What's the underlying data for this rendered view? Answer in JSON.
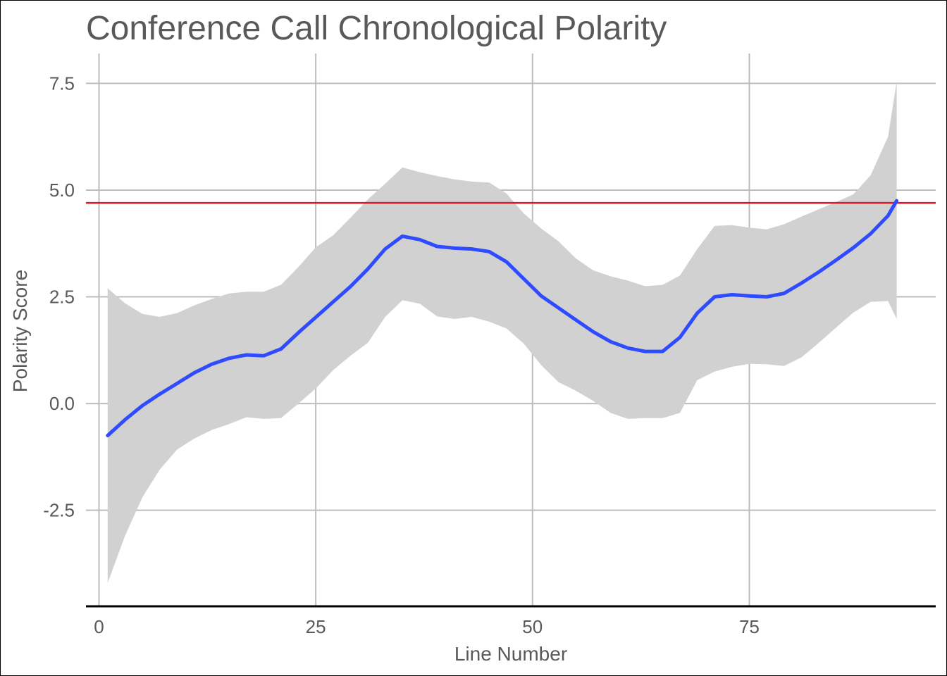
{
  "chart_data": {
    "type": "line",
    "title": "Conference Call Chronological Polarity",
    "xlabel": "Line Number",
    "ylabel": "Polarity Score",
    "xlim": [
      -1.5,
      96.5
    ],
    "ylim": [
      -4.75,
      8.2
    ],
    "x_ticks": [
      0,
      25,
      50,
      75
    ],
    "y_ticks": [
      -2.5,
      0.0,
      2.5,
      5.0,
      7.5
    ],
    "x_tick_labels": [
      "0",
      "25",
      "50",
      "75"
    ],
    "y_tick_labels": [
      "-2.5",
      "0.0",
      "2.5",
      "5.0",
      "7.5"
    ],
    "grid": true,
    "reference_line": {
      "y": 4.7,
      "color": "#e8141e"
    },
    "series": [
      {
        "color": "#2e4bff",
        "band_color": "#d1d1d1",
        "x": [
          1,
          3,
          5,
          7,
          9,
          11,
          13,
          15,
          17,
          19,
          21,
          23,
          25,
          27,
          29,
          31,
          33,
          35,
          37,
          39,
          41,
          43,
          45,
          47,
          49,
          51,
          53,
          55,
          57,
          59,
          61,
          63,
          65,
          67,
          69,
          71,
          73,
          75,
          77,
          79,
          81,
          83,
          85,
          87,
          89,
          91,
          92
        ],
        "y": [
          -0.75,
          -0.38,
          -0.05,
          0.22,
          0.47,
          0.72,
          0.92,
          1.06,
          1.14,
          1.12,
          1.28,
          1.66,
          2.02,
          2.38,
          2.74,
          3.15,
          3.62,
          3.92,
          3.84,
          3.68,
          3.64,
          3.62,
          3.56,
          3.32,
          2.92,
          2.52,
          2.24,
          1.96,
          1.68,
          1.45,
          1.3,
          1.22,
          1.22,
          1.55,
          2.12,
          2.5,
          2.55,
          2.52,
          2.5,
          2.58,
          2.82,
          3.08,
          3.36,
          3.65,
          3.98,
          4.4,
          4.75
        ],
        "upper": [
          2.7,
          2.35,
          2.1,
          2.03,
          2.12,
          2.3,
          2.45,
          2.58,
          2.62,
          2.62,
          2.78,
          3.2,
          3.66,
          3.94,
          4.35,
          4.78,
          5.15,
          5.53,
          5.42,
          5.33,
          5.25,
          5.2,
          5.18,
          4.92,
          4.45,
          4.1,
          3.8,
          3.4,
          3.12,
          2.98,
          2.88,
          2.75,
          2.78,
          3.0,
          3.62,
          4.16,
          4.18,
          4.12,
          4.08,
          4.2,
          4.38,
          4.55,
          4.72,
          4.9,
          5.35,
          6.25,
          7.55
        ],
        "lower": [
          -4.2,
          -3.1,
          -2.2,
          -1.55,
          -1.08,
          -0.82,
          -0.62,
          -0.48,
          -0.32,
          -0.36,
          -0.34,
          0.0,
          0.35,
          0.78,
          1.12,
          1.42,
          2.03,
          2.42,
          2.34,
          2.04,
          1.98,
          2.03,
          1.92,
          1.76,
          1.4,
          0.9,
          0.5,
          0.3,
          0.06,
          -0.22,
          -0.36,
          -0.34,
          -0.34,
          -0.22,
          0.55,
          0.75,
          0.86,
          0.93,
          0.92,
          0.88,
          1.08,
          1.42,
          1.78,
          2.13,
          2.38,
          2.4,
          1.98
        ]
      }
    ]
  }
}
